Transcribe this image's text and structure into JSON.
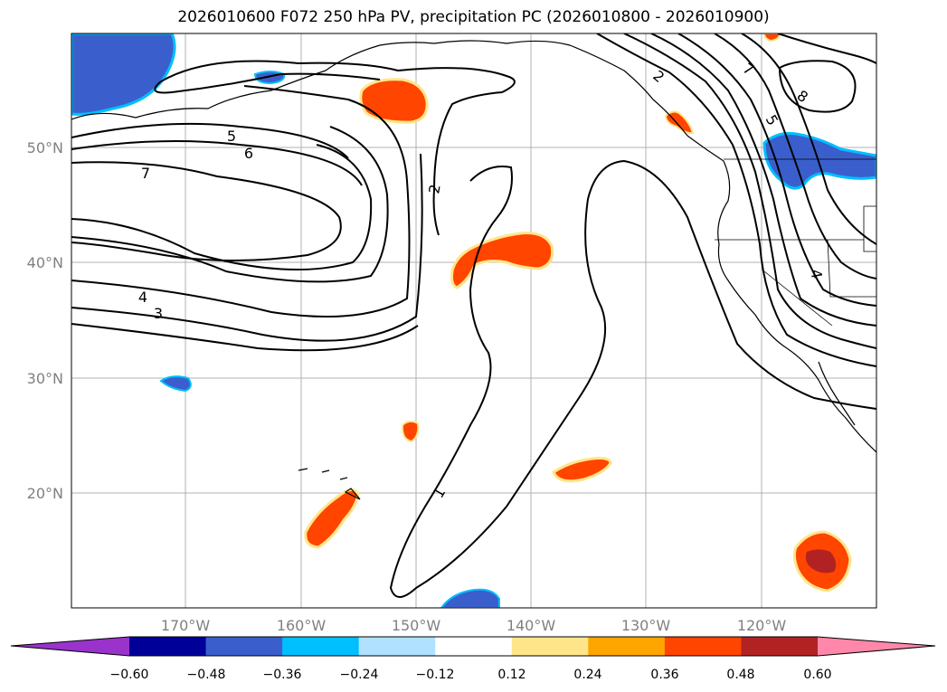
{
  "title": "2026010600 F072 250 hPa PV, precipitation PC (2026010800 - 2026010900)",
  "axes": {
    "lon_labels": [
      "170°W",
      "160°W",
      "150°W",
      "140°W",
      "130°W",
      "120°W"
    ],
    "lat_labels": [
      "50°N",
      "40°N",
      "30°N",
      "20°N"
    ]
  },
  "colorbar": {
    "ticks": [
      "−0.60",
      "−0.48",
      "−0.36",
      "−0.24",
      "−0.12",
      "0.12",
      "0.24",
      "0.36",
      "0.48",
      "0.60"
    ],
    "colors": [
      "#9933cc",
      "#000099",
      "#3a5fcd",
      "#00bfff",
      "#b0e2ff",
      "#ffffff",
      "#ffe58a",
      "#ffa500",
      "#ff4500",
      "#b22222",
      "#ff88aa"
    ]
  },
  "contour_labels": [
    "5",
    "6",
    "7",
    "4",
    "3",
    "2",
    "1",
    "2",
    "7",
    "8",
    "5",
    "4"
  ],
  "colors": {
    "neg_fill": "#3a5fcd",
    "neg_edge": "#00bfff",
    "pos_fill": "#ff4500",
    "pos_edge": "#ffe58a",
    "pos_strong": "#b22222"
  }
}
